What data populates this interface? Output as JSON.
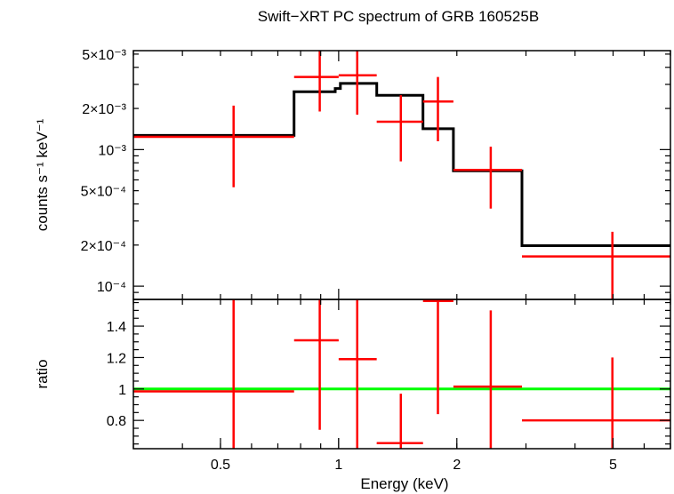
{
  "chart_data": [
    {
      "type": "scatter",
      "title": "Swift−XRT PC spectrum of GRB 160525B",
      "ylabel": "counts s⁻¹ keV⁻¹",
      "xscale": "log",
      "yscale": "log",
      "xlim": [
        0.3,
        7.0
      ],
      "ylim": [
        8e-05,
        0.0053
      ],
      "y_ticks": [
        {
          "value": 0.005,
          "label": "5×10⁻³"
        },
        {
          "value": 0.002,
          "label": "2×10⁻³"
        },
        {
          "value": 0.001,
          "label": "10⁻³"
        },
        {
          "value": 0.0005,
          "label": "5×10⁻⁴"
        },
        {
          "value": 0.0002,
          "label": "2×10⁻⁴"
        },
        {
          "value": 0.0001,
          "label": "10⁻⁴"
        }
      ],
      "series": [
        {
          "role": "data",
          "color": "#ff0000",
          "points": [
            {
              "x": 0.54,
              "xlo": 0.3,
              "xhi": 0.77,
              "y": 0.00124,
              "ylo": 0.00053,
              "yhi": 0.0021
            },
            {
              "x": 0.895,
              "xlo": 0.77,
              "xhi": 1.0,
              "y": 0.0034,
              "ylo": 0.0019,
              "yhi": 0.0053
            },
            {
              "x": 1.115,
              "xlo": 1.0,
              "xhi": 1.25,
              "y": 0.0035,
              "ylo": 0.0018,
              "yhi": 0.0053
            },
            {
              "x": 1.44,
              "xlo": 1.25,
              "xhi": 1.64,
              "y": 0.0016,
              "ylo": 0.00082,
              "yhi": 0.0025
            },
            {
              "x": 1.79,
              "xlo": 1.64,
              "xhi": 1.96,
              "y": 0.00225,
              "ylo": 0.00115,
              "yhi": 0.0034
            },
            {
              "x": 2.44,
              "xlo": 1.96,
              "xhi": 2.93,
              "y": 0.00071,
              "ylo": 0.00037,
              "yhi": 0.00105
            },
            {
              "x": 4.98,
              "xlo": 2.93,
              "xhi": 7.0,
              "y": 0.000165,
              "ylo": 8e-05,
              "yhi": 0.00025
            }
          ]
        },
        {
          "role": "model",
          "color": "#000000",
          "steps": [
            {
              "xlo": 0.3,
              "xhi": 0.77,
              "y": 0.00127
            },
            {
              "xlo": 0.77,
              "xhi": 0.98,
              "y": 0.00265
            },
            {
              "xlo": 0.98,
              "xhi": 1.01,
              "y": 0.0028
            },
            {
              "xlo": 1.01,
              "xhi": 1.25,
              "y": 0.00305
            },
            {
              "xlo": 1.25,
              "xhi": 1.64,
              "y": 0.0025
            },
            {
              "xlo": 1.64,
              "xhi": 1.96,
              "y": 0.00142
            },
            {
              "xlo": 1.96,
              "xhi": 2.93,
              "y": 0.0007
            },
            {
              "xlo": 2.93,
              "xhi": 7.0,
              "y": 0.000198
            }
          ]
        }
      ]
    },
    {
      "type": "scatter",
      "xlabel": "Energy (keV)",
      "ylabel": "ratio",
      "xscale": "log",
      "yscale": "linear",
      "xlim": [
        0.3,
        7.0
      ],
      "ylim": [
        0.62,
        1.57
      ],
      "x_ticks": [
        {
          "value": 0.5,
          "label": "0.5"
        },
        {
          "value": 1,
          "label": "1"
        },
        {
          "value": 2,
          "label": "2"
        },
        {
          "value": 5,
          "label": "5"
        }
      ],
      "y_ticks": [
        {
          "value": 0.8,
          "label": "0.8"
        },
        {
          "value": 1.0,
          "label": "1"
        },
        {
          "value": 1.2,
          "label": "1.2"
        },
        {
          "value": 1.4,
          "label": "1.4"
        }
      ],
      "reference_line": {
        "y": 1.0,
        "color": "#00ff00"
      },
      "series": [
        {
          "role": "data",
          "color": "#ff0000",
          "points": [
            {
              "x": 0.54,
              "xlo": 0.3,
              "xhi": 0.77,
              "y": 0.985,
              "ylo": 0.62,
              "yhi": 1.57
            },
            {
              "x": 0.895,
              "xlo": 0.77,
              "xhi": 1.0,
              "y": 1.31,
              "ylo": 0.74,
              "yhi": 1.57
            },
            {
              "x": 1.115,
              "xlo": 1.0,
              "xhi": 1.25,
              "y": 1.19,
              "ylo": 0.62,
              "yhi": 1.57
            },
            {
              "x": 1.44,
              "xlo": 1.25,
              "xhi": 1.64,
              "y": 0.655,
              "ylo": 0.62,
              "yhi": 0.97
            },
            {
              "x": 1.79,
              "xlo": 1.64,
              "xhi": 1.96,
              "y": 1.56,
              "ylo": 0.84,
              "yhi": 1.57
            },
            {
              "x": 2.44,
              "xlo": 1.96,
              "xhi": 2.93,
              "y": 1.015,
              "ylo": 0.62,
              "yhi": 1.5
            },
            {
              "x": 4.98,
              "xlo": 2.93,
              "xhi": 7.0,
              "y": 0.8,
              "ylo": 0.62,
              "yhi": 1.2
            }
          ]
        }
      ]
    }
  ]
}
